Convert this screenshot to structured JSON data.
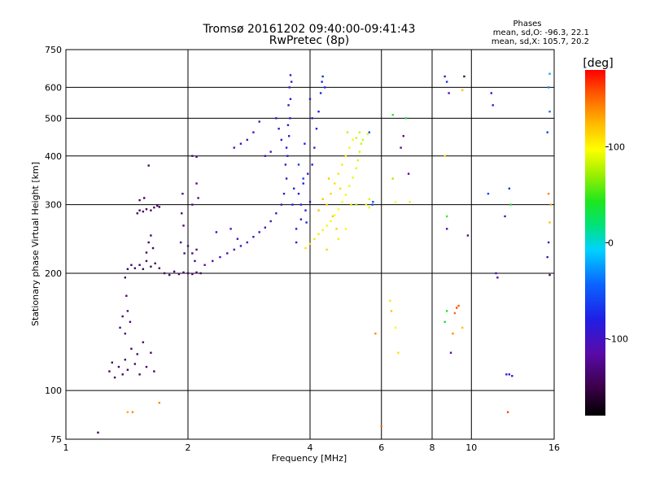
{
  "chart_data": {
    "type": "scatter",
    "title": "Tromsø 20161202 09:40:00-09:41:43",
    "subtitle": "RwPretec (8p)",
    "xlabel": "Frequency [MHz]",
    "ylabel": "Stationary phase Virtual Height [km]",
    "x_scale": "log",
    "y_scale": "log",
    "xlim": [
      1,
      16
    ],
    "ylim": [
      75,
      750
    ],
    "x_ticks": [
      1,
      2,
      4,
      6,
      8,
      10,
      16
    ],
    "y_ticks": [
      75,
      100,
      200,
      300,
      400,
      500,
      600,
      750
    ],
    "grid": true,
    "phase_info": {
      "heading": "Phases",
      "line1": "mean, sd,O: -96.3, 22.1",
      "line2": "mean, sd,X: 105.7, 20.2"
    },
    "colorbar": {
      "label": "[deg]",
      "range": [
        -180,
        180
      ],
      "ticks": [
        100,
        0,
        -100
      ],
      "colormap": "rainbow"
    },
    "series": [
      {
        "points": [
          [
            1.28,
            112,
            -140
          ],
          [
            1.3,
            118,
            -138
          ],
          [
            1.32,
            108,
            -142
          ],
          [
            1.35,
            115,
            -140
          ],
          [
            1.38,
            110,
            -138
          ],
          [
            1.4,
            120,
            -135
          ],
          [
            1.42,
            113,
            -140
          ],
          [
            1.45,
            128,
            -136
          ],
          [
            1.48,
            117,
            -138
          ],
          [
            1.5,
            124,
            -137
          ],
          [
            1.52,
            110,
            -140
          ],
          [
            1.55,
            133,
            -135
          ],
          [
            1.58,
            115,
            -138
          ],
          [
            1.62,
            125,
            -136
          ],
          [
            1.65,
            112,
            -139
          ],
          [
            1.36,
            145,
            -130
          ],
          [
            1.4,
            140,
            -130
          ],
          [
            1.44,
            150,
            -132
          ],
          [
            1.42,
            160,
            -125
          ],
          [
            1.41,
            175,
            -130
          ],
          [
            1.4,
            195,
            -140
          ],
          [
            1.42,
            205,
            -145
          ],
          [
            1.45,
            210,
            -140
          ],
          [
            1.48,
            206,
            -142
          ],
          [
            1.52,
            210,
            -140
          ],
          [
            1.55,
            205,
            -145
          ],
          [
            1.58,
            215,
            -138
          ],
          [
            1.62,
            208,
            -142
          ],
          [
            1.66,
            212,
            -140
          ],
          [
            1.7,
            206,
            -143
          ],
          [
            1.75,
            200,
            -140
          ],
          [
            1.8,
            198,
            -142
          ],
          [
            1.85,
            202,
            -140
          ],
          [
            1.9,
            199,
            -141
          ],
          [
            1.95,
            201,
            -140
          ],
          [
            2.0,
            200,
            -138
          ],
          [
            2.05,
            199,
            -140
          ],
          [
            2.1,
            201,
            -139
          ],
          [
            2.15,
            200,
            -141
          ],
          [
            1.5,
            285,
            -140
          ],
          [
            1.52,
            290,
            -142
          ],
          [
            1.55,
            288,
            -140
          ],
          [
            1.58,
            292,
            -141
          ],
          [
            1.62,
            290,
            -139
          ],
          [
            1.65,
            295,
            -140
          ],
          [
            1.68,
            298,
            -142
          ],
          [
            1.7,
            296,
            -140
          ],
          [
            1.52,
            308,
            -138
          ],
          [
            1.56,
            312,
            -139
          ],
          [
            1.6,
            240,
            -140
          ],
          [
            1.62,
            250,
            -138
          ],
          [
            1.58,
            226,
            -141
          ],
          [
            1.64,
            232,
            -140
          ],
          [
            1.6,
            378,
            -140
          ],
          [
            1.93,
            285,
            -135
          ],
          [
            1.95,
            265,
            -135
          ],
          [
            1.92,
            240,
            -130
          ],
          [
            1.96,
            225,
            -133
          ],
          [
            2.0,
            235,
            -132
          ],
          [
            2.05,
            225,
            -130
          ],
          [
            2.08,
            215,
            -128
          ],
          [
            2.1,
            230,
            -130
          ],
          [
            2.05,
            400,
            -130
          ],
          [
            2.1,
            398,
            -128
          ],
          [
            2.05,
            300,
            -125
          ],
          [
            2.1,
            340,
            -125
          ],
          [
            2.12,
            312,
            -126
          ],
          [
            1.94,
            320,
            -128
          ],
          [
            2.2,
            210,
            -115
          ],
          [
            2.3,
            215,
            -112
          ],
          [
            2.4,
            220,
            -110
          ],
          [
            2.5,
            225,
            -108
          ],
          [
            2.6,
            230,
            -107
          ],
          [
            2.7,
            235,
            -106
          ],
          [
            2.8,
            240,
            -105
          ],
          [
            2.9,
            248,
            -104
          ],
          [
            3.0,
            255,
            -103
          ],
          [
            3.1,
            262,
            -102
          ],
          [
            3.2,
            272,
            -101
          ],
          [
            3.3,
            285,
            -100
          ],
          [
            3.4,
            300,
            -100
          ],
          [
            3.45,
            320,
            -100
          ],
          [
            3.5,
            350,
            -99
          ],
          [
            3.52,
            400,
            -98
          ],
          [
            3.55,
            450,
            -98
          ],
          [
            3.57,
            500,
            -97
          ],
          [
            3.58,
            560,
            -97
          ],
          [
            3.6,
            620,
            -96
          ],
          [
            3.58,
            645,
            -96
          ],
          [
            3.56,
            600,
            -97
          ],
          [
            3.54,
            540,
            -98
          ],
          [
            3.53,
            480,
            -98
          ],
          [
            3.5,
            420,
            -99
          ],
          [
            3.48,
            380,
            -100
          ],
          [
            3.4,
            440,
            -100
          ],
          [
            3.35,
            470,
            -100
          ],
          [
            3.3,
            500,
            -101
          ],
          [
            2.6,
            420,
            -110
          ],
          [
            2.7,
            430,
            -108
          ],
          [
            2.8,
            440,
            -106
          ],
          [
            2.9,
            460,
            -104
          ],
          [
            3.0,
            490,
            -103
          ],
          [
            3.2,
            410,
            -102
          ],
          [
            3.1,
            400,
            -103
          ],
          [
            2.35,
            255,
            -105
          ],
          [
            2.55,
            260,
            -104
          ],
          [
            2.65,
            245,
            -105
          ],
          [
            3.7,
            260,
            -90
          ],
          [
            3.8,
            275,
            -88
          ],
          [
            3.9,
            290,
            -87
          ],
          [
            4.0,
            305,
            -86
          ],
          [
            3.75,
            320,
            -88
          ],
          [
            3.85,
            340,
            -86
          ],
          [
            3.95,
            360,
            -85
          ],
          [
            4.05,
            380,
            -84
          ],
          [
            4.1,
            420,
            -82
          ],
          [
            4.15,
            470,
            -80
          ],
          [
            4.2,
            520,
            -78
          ],
          [
            4.25,
            580,
            -76
          ],
          [
            4.28,
            620,
            -75
          ],
          [
            4.3,
            640,
            -74
          ],
          [
            4.35,
            600,
            -74
          ],
          [
            4.0,
            560,
            -88
          ],
          [
            4.05,
            500,
            -86
          ],
          [
            3.88,
            430,
            -85
          ],
          [
            3.8,
            300,
            -88
          ],
          [
            3.7,
            240,
            -92
          ],
          [
            3.62,
            300,
            -80
          ],
          [
            3.65,
            330,
            -75
          ],
          [
            3.75,
            380,
            -65
          ],
          [
            3.85,
            350,
            -60
          ],
          [
            3.92,
            270,
            -80
          ],
          [
            3.9,
            232,
            110
          ],
          [
            4.0,
            238,
            112
          ],
          [
            4.1,
            245,
            108
          ],
          [
            4.2,
            252,
            106
          ],
          [
            4.3,
            258,
            104
          ],
          [
            4.4,
            265,
            102
          ],
          [
            4.5,
            272,
            100
          ],
          [
            4.6,
            282,
            98
          ],
          [
            4.7,
            292,
            97
          ],
          [
            4.8,
            305,
            95
          ],
          [
            4.9,
            318,
            94
          ],
          [
            5.0,
            335,
            92
          ],
          [
            5.1,
            352,
            90
          ],
          [
            5.2,
            372,
            88
          ],
          [
            5.25,
            390,
            86
          ],
          [
            5.3,
            410,
            85
          ],
          [
            5.35,
            430,
            84
          ],
          [
            5.4,
            440,
            83
          ],
          [
            5.3,
            460,
            82
          ],
          [
            5.2,
            445,
            84
          ],
          [
            4.4,
            300,
            115
          ],
          [
            4.5,
            320,
            112
          ],
          [
            4.6,
            340,
            110
          ],
          [
            4.7,
            360,
            108
          ],
          [
            4.8,
            380,
            106
          ],
          [
            4.9,
            400,
            104
          ],
          [
            5.0,
            420,
            102
          ],
          [
            5.1,
            440,
            100
          ],
          [
            4.55,
            280,
            118
          ],
          [
            4.65,
            260,
            116
          ],
          [
            4.3,
            310,
            120
          ],
          [
            4.2,
            290,
            122
          ],
          [
            4.45,
            350,
            118
          ],
          [
            4.75,
            330,
            112
          ],
          [
            5.05,
            300,
            110
          ],
          [
            5.5,
            300,
            92
          ],
          [
            5.6,
            295,
            88
          ],
          [
            5.7,
            300,
            90
          ],
          [
            5.6,
            310,
            86
          ],
          [
            5.55,
            455,
            88
          ],
          [
            4.95,
            460,
            80
          ],
          [
            5.2,
            300,
            75
          ],
          [
            4.9,
            260,
            95
          ],
          [
            4.7,
            245,
            105
          ],
          [
            4.4,
            230,
            114
          ],
          [
            5.7,
            300,
            -55
          ],
          [
            5.72,
            305,
            -50
          ],
          [
            5.6,
            460,
            -60
          ],
          [
            6.4,
            350,
            75
          ],
          [
            6.5,
            305,
            95
          ],
          [
            6.4,
            510,
            45
          ],
          [
            6.3,
            170,
            108
          ],
          [
            6.35,
            160,
            120
          ],
          [
            6.5,
            145,
            100
          ],
          [
            6.6,
            125,
            110
          ],
          [
            6.0,
            81,
            150
          ],
          [
            5.8,
            140,
            140
          ],
          [
            6.9,
            500,
            30
          ],
          [
            7.0,
            360,
            -120
          ],
          [
            7.05,
            305,
            105
          ],
          [
            6.8,
            450,
            -120
          ],
          [
            6.7,
            420,
            -120
          ],
          [
            8.6,
            640,
            -80
          ],
          [
            8.7,
            620,
            -70
          ],
          [
            8.8,
            580,
            -100
          ],
          [
            8.6,
            400,
            110
          ],
          [
            8.7,
            280,
            50
          ],
          [
            8.7,
            260,
            -120
          ],
          [
            8.7,
            160,
            40
          ],
          [
            8.6,
            150,
            30
          ],
          [
            8.9,
            125,
            -110
          ],
          [
            9.0,
            140,
            140
          ],
          [
            9.1,
            158,
            150
          ],
          [
            9.2,
            163,
            160
          ],
          [
            9.3,
            165,
            155
          ],
          [
            9.5,
            145,
            120
          ],
          [
            9.5,
            590,
            120
          ],
          [
            9.6,
            640,
            -150
          ],
          [
            9.8,
            250,
            -130
          ],
          [
            11.2,
            580,
            -90
          ],
          [
            11.3,
            540,
            -80
          ],
          [
            11.0,
            320,
            -60
          ],
          [
            11.5,
            200,
            -100
          ],
          [
            11.6,
            195,
            -120
          ],
          [
            12.1,
            280,
            -110
          ],
          [
            12.2,
            110,
            -90
          ],
          [
            12.4,
            110,
            -85
          ],
          [
            12.6,
            109,
            -88
          ],
          [
            12.3,
            88,
            160
          ],
          [
            12.4,
            330,
            -70
          ],
          [
            12.5,
            300,
            40
          ],
          [
            15.5,
            600,
            -30
          ],
          [
            15.6,
            650,
            -20
          ],
          [
            15.4,
            460,
            -60
          ],
          [
            15.6,
            520,
            -40
          ],
          [
            15.5,
            320,
            140
          ],
          [
            15.7,
            300,
            130
          ],
          [
            15.6,
            270,
            120
          ],
          [
            15.5,
            240,
            -110
          ],
          [
            15.4,
            220,
            -100
          ],
          [
            15.6,
            198,
            -140
          ],
          [
            1.2,
            78,
            -150
          ],
          [
            1.38,
            155,
            -140
          ],
          [
            1.42,
            88,
            130
          ],
          [
            1.7,
            93,
            140
          ],
          [
            1.46,
            88,
            140
          ]
        ]
      }
    ]
  }
}
